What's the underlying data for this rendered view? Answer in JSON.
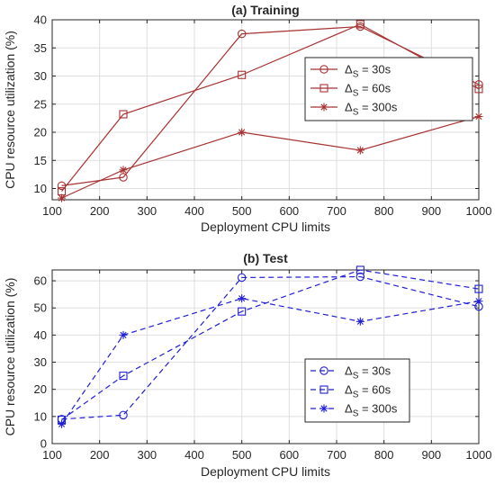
{
  "chart_data": [
    {
      "type": "line",
      "title": "(a) Training",
      "xlabel": "Deployment CPU limits",
      "ylabel": "CPU resource utilization (%)",
      "xlim": [
        100,
        1000
      ],
      "ylim": [
        8,
        40
      ],
      "xticks": [
        100,
        200,
        300,
        400,
        500,
        600,
        700,
        800,
        900,
        1000
      ],
      "yticks": [
        10,
        15,
        20,
        25,
        30,
        35,
        40
      ],
      "grid": true,
      "legend_position": "top-right",
      "line_style": "solid",
      "color": "#a83232",
      "x": [
        120,
        250,
        500,
        750,
        1000
      ],
      "series": [
        {
          "name": "30s",
          "marker": "circle",
          "values": [
            10.5,
            12.0,
            37.5,
            38.8,
            28.5
          ]
        },
        {
          "name": "60s",
          "marker": "square",
          "values": [
            9.5,
            23.2,
            30.2,
            39.2,
            27.7
          ]
        },
        {
          "name": "300s",
          "marker": "asterisk",
          "values": [
            8.3,
            13.3,
            20.0,
            16.8,
            22.8
          ]
        }
      ]
    },
    {
      "type": "line",
      "title": "(b) Test",
      "xlabel": "Deployment CPU limits",
      "ylabel": "CPU resource utilization (%)",
      "xlim": [
        100,
        1000
      ],
      "ylim": [
        0,
        64
      ],
      "xticks": [
        100,
        200,
        300,
        400,
        500,
        600,
        700,
        800,
        900,
        1000
      ],
      "yticks": [
        0,
        10,
        20,
        30,
        40,
        50,
        60
      ],
      "grid": true,
      "legend_position": "bottom-right",
      "line_style": "dashed",
      "color": "#1f1fd6",
      "x": [
        120,
        250,
        500,
        750,
        1000
      ],
      "series": [
        {
          "name": "30s",
          "marker": "circle",
          "values": [
            9.0,
            10.5,
            61.2,
            61.5,
            50.5
          ]
        },
        {
          "name": "60s",
          "marker": "square",
          "values": [
            8.8,
            25.0,
            48.7,
            64.0,
            57.0
          ]
        },
        {
          "name": "300s",
          "marker": "asterisk",
          "values": [
            7.2,
            40.0,
            53.5,
            45.0,
            52.5
          ]
        }
      ]
    }
  ],
  "legend_prefix": "Δ",
  "legend_subscript": "S",
  "legend_eq": " = "
}
